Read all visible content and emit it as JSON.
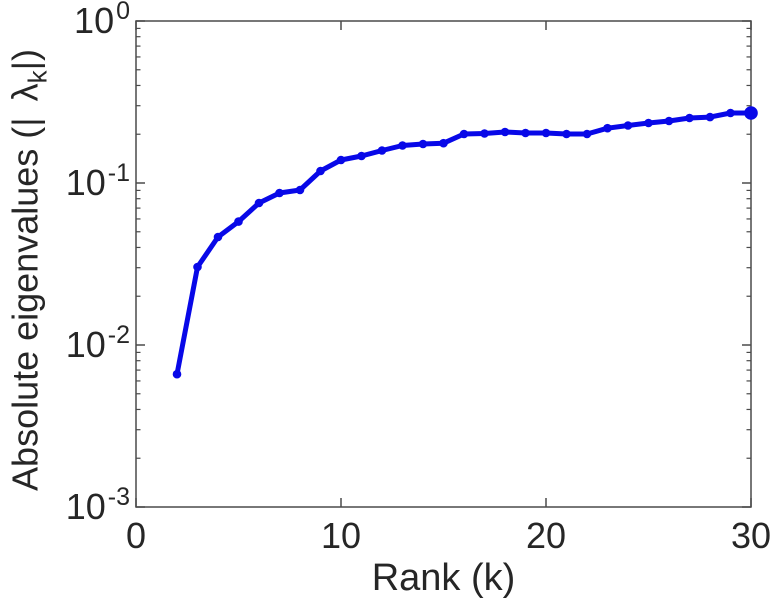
{
  "figure": {
    "background": "#ffffff",
    "axis_color": "#4a4a4a",
    "text_color": "#262626"
  },
  "chart_data": {
    "type": "line",
    "title": "",
    "xlabel": "Rank (k)",
    "ylabel_parts": {
      "prefix": "Absolute eigenvalues (|",
      "symbol": "λ",
      "subscript": "k",
      "suffix": "|)"
    },
    "yscale": "log",
    "xlim": [
      0,
      30
    ],
    "ylim": [
      0.001,
      1
    ],
    "grid": false,
    "legend": null,
    "x_ticks": [
      {
        "value": 0,
        "label": "0"
      },
      {
        "value": 10,
        "label": "10"
      },
      {
        "value": 20,
        "label": "20"
      },
      {
        "value": 30,
        "label": "30"
      }
    ],
    "y_ticks": [
      {
        "value": 1,
        "base": "10",
        "exp": "0"
      },
      {
        "value": 0.1,
        "base": "10",
        "exp": "-1"
      },
      {
        "value": 0.01,
        "base": "10",
        "exp": "-2"
      },
      {
        "value": 0.001,
        "base": "10",
        "exp": "-3"
      }
    ],
    "series": [
      {
        "name": "absolute eigenvalues",
        "color": "#0808e8",
        "marker": "dot",
        "x": [
          2,
          3,
          4,
          5,
          6,
          7,
          8,
          9,
          10,
          11,
          12,
          13,
          14,
          15,
          16,
          17,
          18,
          19,
          20,
          21,
          22,
          23,
          24,
          25,
          26,
          27,
          28,
          29,
          30
        ],
        "y": [
          0.0066,
          0.0303,
          0.0464,
          0.0578,
          0.0753,
          0.0867,
          0.0905,
          0.1186,
          0.1387,
          0.1468,
          0.1588,
          0.1704,
          0.174,
          0.176,
          0.2007,
          0.2022,
          0.2065,
          0.2036,
          0.2036,
          0.2007,
          0.2007,
          0.218,
          0.2265,
          0.2346,
          0.2415,
          0.2518,
          0.2553,
          0.2704,
          0.2704
        ]
      }
    ]
  }
}
